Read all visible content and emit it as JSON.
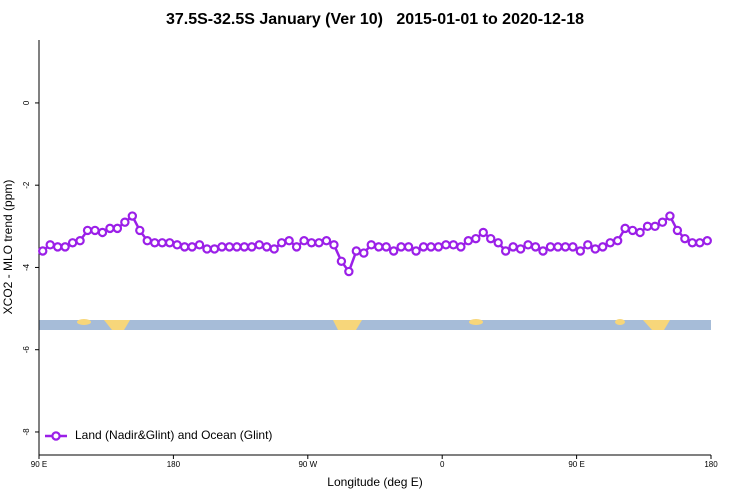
{
  "chart_data": {
    "type": "line",
    "title": "37.5S-32.5S January (Ver 10)   2015-01-01 to 2020-12-18",
    "x_label": "Longitude (deg E)",
    "y_label": "XCO2 - MLO trend (ppm)",
    "x": [
      92.5,
      97.5,
      102.5,
      107.5,
      112.5,
      117.5,
      122.5,
      127.5,
      132.5,
      137.5,
      142.5,
      147.5,
      152.5,
      157.5,
      162.5,
      167.5,
      172.5,
      177.5,
      182.5,
      187.5,
      192.5,
      197.5,
      202.5,
      207.5,
      212.5,
      217.5,
      222.5,
      227.5,
      232.5,
      237.5,
      242.5,
      247.5,
      252.5,
      257.5,
      262.5,
      267.5,
      272.5,
      277.5,
      282.5,
      287.5,
      292.5,
      297.5,
      302.5,
      307.5,
      312.5,
      317.5,
      322.5,
      327.5,
      332.5,
      337.5,
      342.5,
      347.5,
      352.5,
      357.5,
      362.5,
      367.5,
      372.5,
      377.5,
      382.5,
      387.5,
      392.5,
      397.5,
      402.5,
      407.5,
      412.5,
      417.5,
      422.5,
      427.5,
      432.5,
      437.5,
      442.5,
      447.5,
      452.5,
      457.5,
      462.5,
      467.5,
      472.5,
      477.5,
      482.5,
      487.5,
      492.5,
      497.5,
      502.5,
      507.5,
      512.5,
      517.5,
      522.5,
      527.5,
      532.5,
      537.5
    ],
    "series": [
      {
        "name": "Land (Nadir&Glint) and Ocean (Glint)",
        "color": "#9b1fe8",
        "values": [
          -3.6,
          -3.45,
          -3.5,
          -3.5,
          -3.4,
          -3.35,
          -3.1,
          -3.1,
          -3.15,
          -3.05,
          -3.05,
          -2.9,
          -2.75,
          -3.1,
          -3.35,
          -3.4,
          -3.4,
          -3.4,
          -3.45,
          -3.5,
          -3.5,
          -3.45,
          -3.55,
          -3.55,
          -3.5,
          -3.5,
          -3.5,
          -3.5,
          -3.5,
          -3.45,
          -3.5,
          -3.55,
          -3.4,
          -3.35,
          -3.5,
          -3.35,
          -3.4,
          -3.4,
          -3.35,
          -3.45,
          -3.85,
          -4.1,
          -3.6,
          -3.65,
          -3.45,
          -3.5,
          -3.5,
          -3.6,
          -3.5,
          -3.5,
          -3.6,
          -3.5,
          -3.5,
          -3.5,
          -3.45,
          -3.45,
          -3.5,
          -3.35,
          -3.3,
          -3.15,
          -3.3,
          -3.4,
          -3.6,
          -3.5,
          -3.55,
          -3.45,
          -3.5,
          -3.6,
          -3.5,
          -3.5,
          -3.5,
          -3.5,
          -3.6,
          -3.45,
          -3.55,
          -3.5,
          -3.4,
          -3.35,
          -3.05,
          -3.1,
          -3.15,
          -3.0,
          -3.0,
          -2.9,
          -2.75,
          -3.1,
          -3.3,
          -3.4,
          -3.4,
          -3.35
        ]
      }
    ],
    "xlim": [
      90,
      540
    ],
    "xticks": [
      {
        "value": 90,
        "label": "90 E"
      },
      {
        "value": 180,
        "label": "180"
      },
      {
        "value": 270,
        "label": "90 W"
      },
      {
        "value": 360,
        "label": "0"
      },
      {
        "value": 450,
        "label": "90 E"
      },
      {
        "value": 540,
        "label": "180"
      }
    ],
    "ylim": [
      -8.56,
      1.53
    ],
    "yticks": [
      0,
      -2,
      -4,
      -6,
      -8
    ],
    "legend": "lower left"
  }
}
